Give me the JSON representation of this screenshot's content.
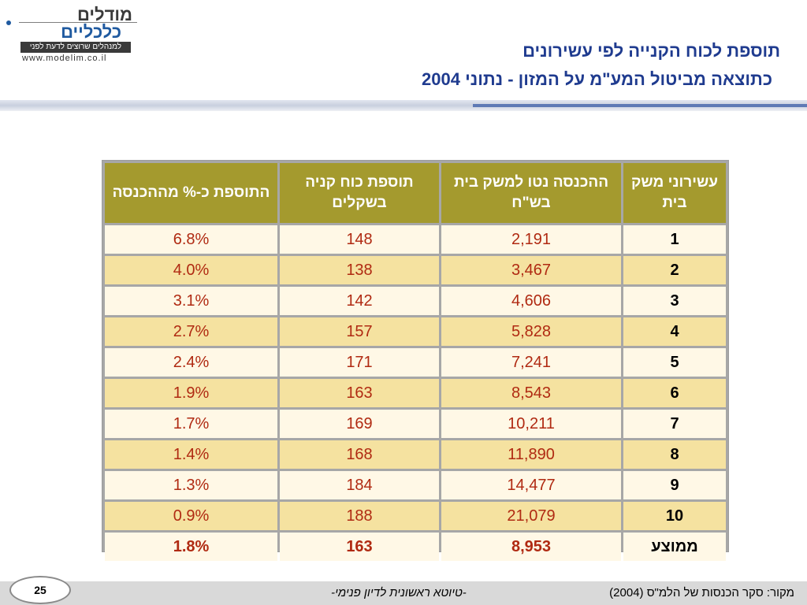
{
  "logo": {
    "line1": "מודלים",
    "line2": "כלכליים",
    "tagline": "למנהלים שרוצים לדעת לפני",
    "url": "www.modelim.co.il"
  },
  "title": {
    "line1": "תוספת לכוח הקנייה לפי עשירונים",
    "line2": "כתוצאה מביטול המע\"מ על המזון - נתוני 2004"
  },
  "table": {
    "headers": {
      "decile": "עשירוני משק בית",
      "income": "ההכנסה נטו למשק בית בש\"ח",
      "addition": "תוספת כוח קניה בשקלים",
      "percent": "התוספת כ-% מההכנסה"
    },
    "rows": [
      {
        "decile": "1",
        "income": "2,191",
        "addition": "148",
        "percent": "6.8%"
      },
      {
        "decile": "2",
        "income": "3,467",
        "addition": "138",
        "percent": "4.0%"
      },
      {
        "decile": "3",
        "income": "4,606",
        "addition": "142",
        "percent": "3.1%"
      },
      {
        "decile": "4",
        "income": "5,828",
        "addition": "157",
        "percent": "2.7%"
      },
      {
        "decile": "5",
        "income": "7,241",
        "addition": "171",
        "percent": "2.4%"
      },
      {
        "decile": "6",
        "income": "8,543",
        "addition": "163",
        "percent": "1.9%"
      },
      {
        "decile": "7",
        "income": "10,211",
        "addition": "169",
        "percent": "1.7%"
      },
      {
        "decile": "8",
        "income": "11,890",
        "addition": "168",
        "percent": "1.4%"
      },
      {
        "decile": "9",
        "income": "14,477",
        "addition": "184",
        "percent": "1.3%"
      },
      {
        "decile": "10",
        "income": "21,079",
        "addition": "188",
        "percent": "0.9%"
      }
    ],
    "average": {
      "decile": "ממוצע",
      "income": "8,953",
      "addition": "163",
      "percent": "1.8%"
    }
  },
  "footer": {
    "page_number": "25",
    "draft_note": "-טיוטא ראשונית לדיון פנימי-",
    "source": "מקור: סקר הכנסות של הלמ\"ס (2004)"
  },
  "colors": {
    "header_bg": "#a49a2e",
    "row_light": "#fff8e6",
    "row_dark": "#f5e2a0",
    "value_text": "#b02a12",
    "title": "#1f3b8f"
  }
}
